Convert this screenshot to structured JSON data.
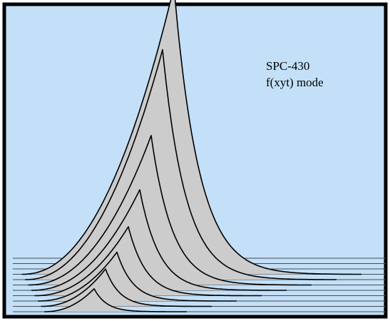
{
  "chart_data": {
    "type": "area",
    "title": "",
    "annotation_lines": [
      "SPC-430",
      "f(xyt) mode"
    ],
    "xlabel": "",
    "ylabel": "",
    "grid": false,
    "legend": "none",
    "style": "waterfall",
    "colors": {
      "background": "#c3e0f8",
      "frame": "#000000",
      "fill": "#cccccc",
      "line": "#000000"
    },
    "series": [
      {
        "curve_fraction": 1.0,
        "peak_height": 0.08
      },
      {
        "curve_fraction": 0.96,
        "peak_height": 0.13
      },
      {
        "curve_fraction": 0.92,
        "peak_height": 0.17
      },
      {
        "curve_fraction": 0.88,
        "peak_height": 0.24
      },
      {
        "curve_fraction": 0.84,
        "peak_height": 0.35
      },
      {
        "curve_fraction": 0.8,
        "peak_height": 0.52
      },
      {
        "curve_fraction": 0.76,
        "peak_height": 0.8
      },
      {
        "curve_fraction": 0.72,
        "peak_height": 1.0
      },
      {
        "curve_fraction": 0.68,
        "peak_height": 0.0
      },
      {
        "curve_fraction": 0.64,
        "peak_height": 0.0
      },
      {
        "curve_fraction": 0.6,
        "peak_height": 0.0
      }
    ]
  }
}
